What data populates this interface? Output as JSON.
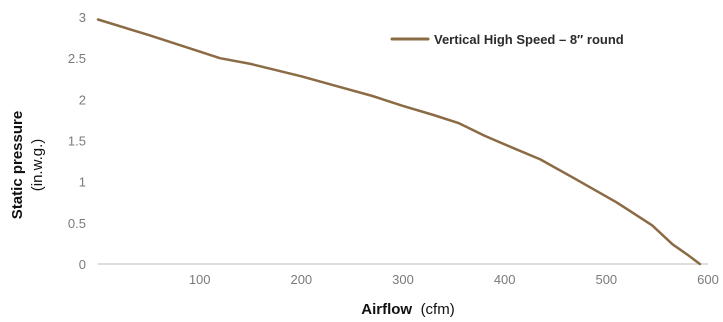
{
  "chart_data": {
    "type": "line",
    "title": "",
    "xlabel": {
      "bold": "Airflow",
      "normal": "(cfm)"
    },
    "ylabel": {
      "bold": "Static pressure",
      "normal": "(in.w.g.)"
    },
    "xlim": [
      0,
      600
    ],
    "ylim": [
      0,
      3
    ],
    "x_ticks": [
      "100",
      "200",
      "300",
      "400",
      "500",
      "600"
    ],
    "y_ticks": [
      "0",
      "0.5",
      "1",
      "1.5",
      "2",
      "2.5",
      "3"
    ],
    "grid": false,
    "legend_position": "top-right",
    "series": [
      {
        "name": "Vertical High Speed – 8″ round",
        "color": "#8B6B45",
        "points": [
          [
            0,
            2.97
          ],
          [
            50,
            2.78
          ],
          [
            100,
            2.58
          ],
          [
            120,
            2.5
          ],
          [
            150,
            2.43
          ],
          [
            200,
            2.28
          ],
          [
            235,
            2.16
          ],
          [
            270,
            2.04
          ],
          [
            300,
            1.92
          ],
          [
            330,
            1.81
          ],
          [
            355,
            1.71
          ],
          [
            380,
            1.56
          ],
          [
            410,
            1.4
          ],
          [
            435,
            1.27
          ],
          [
            470,
            1.03
          ],
          [
            510,
            0.75
          ],
          [
            545,
            0.47
          ],
          [
            565,
            0.24
          ],
          [
            580,
            0.11
          ],
          [
            592,
            0.0
          ]
        ]
      }
    ]
  }
}
